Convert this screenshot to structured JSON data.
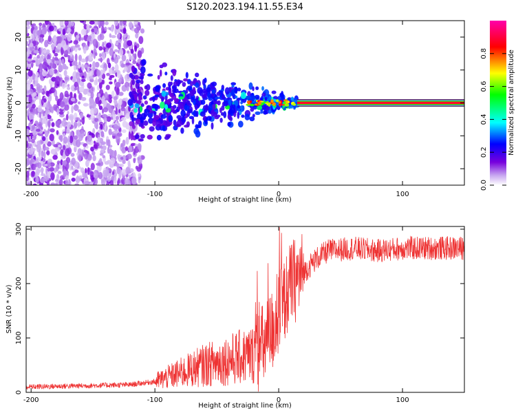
{
  "title": "S120.2023.194.11.55.E34",
  "chart_data": [
    {
      "type": "heatmap",
      "name": "spectrogram",
      "xlabel": "Height of straight line (km)",
      "ylabel": "Frequency (Hz)",
      "xlim": [
        -204,
        150
      ],
      "ylim": [
        -25,
        25
      ],
      "xticks": [
        -200,
        -100,
        0,
        100
      ],
      "yticks": [
        -20,
        -10,
        0,
        10,
        20
      ],
      "colorbar": {
        "label": "Normalized spectral amplitude",
        "range": [
          0,
          1
        ],
        "ticks": [
          0.0,
          0.2,
          0.4,
          0.6,
          0.8
        ],
        "colormap": [
          "#ffffff",
          "#7700dd",
          "#0000ff",
          "#00ffff",
          "#00ff00",
          "#ffff00",
          "#ff0000",
          "#ff00ff"
        ]
      },
      "features": {
        "noise_x_range": [
          -204,
          -110
        ],
        "cluster_x_range": [
          -120,
          15
        ],
        "continuous_line_x_range": [
          15,
          150
        ],
        "line_frequency": 0
      }
    },
    {
      "type": "line",
      "name": "snr",
      "xlabel": "Height of straight line (km)",
      "ylabel": "SNR (10 * v/v)",
      "xlim": [
        -204,
        150
      ],
      "ylim": [
        0,
        305
      ],
      "xticks": [
        -200,
        -100,
        0,
        100
      ],
      "yticks": [
        0,
        100,
        200,
        300
      ],
      "color": "#ee3333",
      "trend": {
        "x": [
          -204,
          -160,
          -120,
          -100,
          -80,
          -60,
          -40,
          -20,
          -10,
          0,
          10,
          20,
          30,
          40,
          60,
          80,
          100,
          120,
          150
        ],
        "y": [
          10,
          12,
          14,
          20,
          35,
          50,
          60,
          70,
          90,
          140,
          200,
          220,
          245,
          260,
          265,
          260,
          265,
          265,
          265
        ]
      }
    }
  ]
}
